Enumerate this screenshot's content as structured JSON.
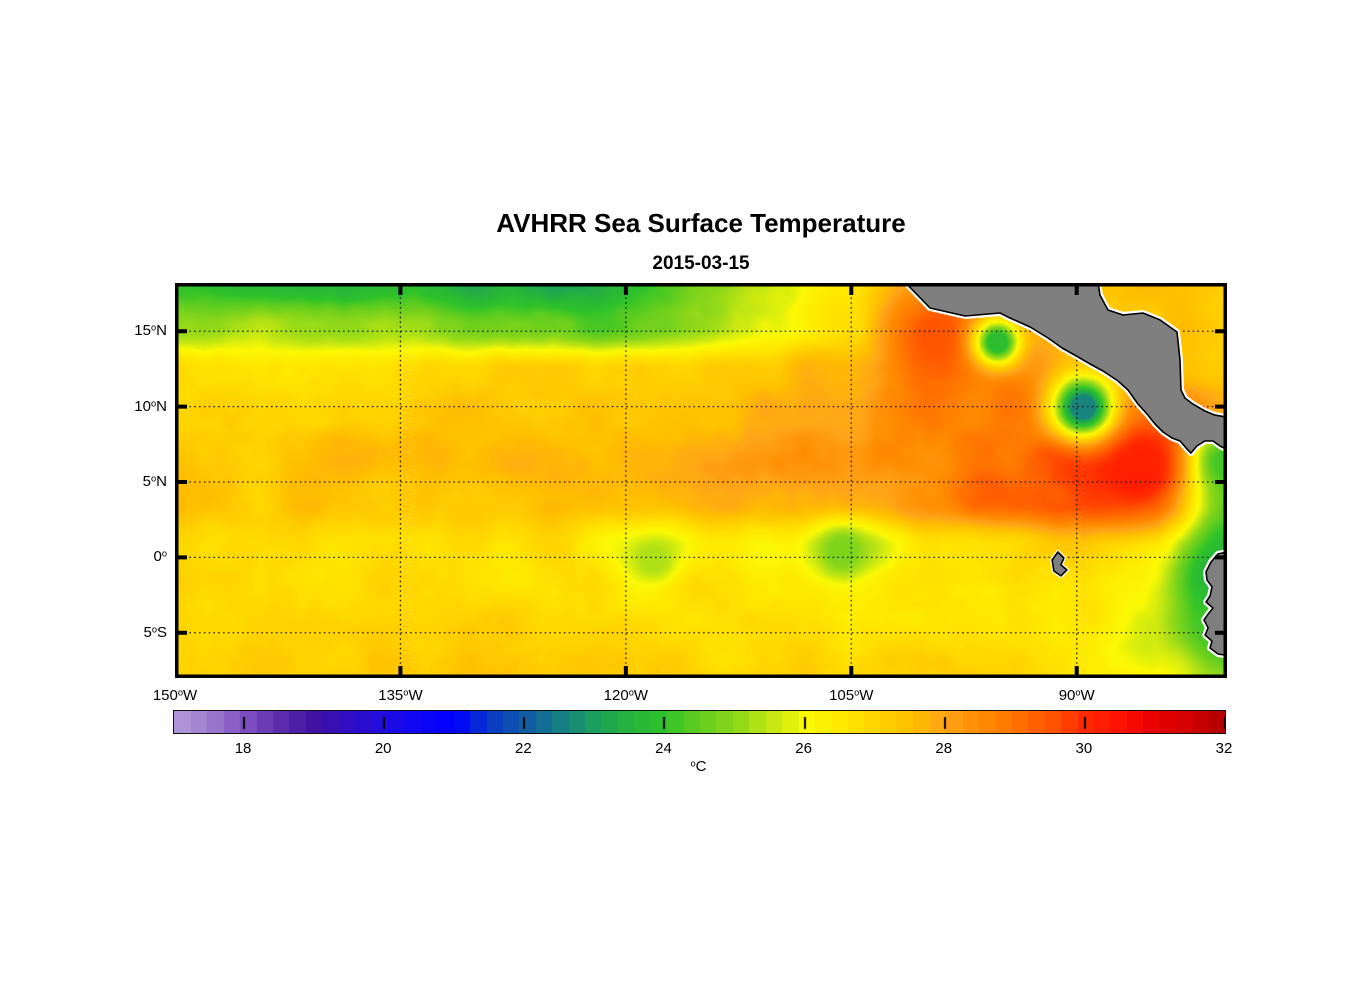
{
  "title": "AVHRR Sea Surface Temperature",
  "subtitle": "2015-03-15",
  "chart_data": {
    "type": "heatmap",
    "title": "AVHRR Sea Surface Temperature",
    "subtitle": "2015-03-15",
    "geo": {
      "lon_min": -150,
      "lon_max": -80,
      "lat_min": -8.0,
      "lat_max": 18.2
    },
    "x_ticks": [
      {
        "v": -150,
        "num": "150",
        "deg": "o",
        "dir": "W"
      },
      {
        "v": -135,
        "num": "135",
        "deg": "o",
        "dir": "W"
      },
      {
        "v": -120,
        "num": "120",
        "deg": "o",
        "dir": "W"
      },
      {
        "v": -105,
        "num": "105",
        "deg": "o",
        "dir": "W"
      },
      {
        "v": -90,
        "num": "90",
        "deg": "o",
        "dir": "W"
      }
    ],
    "y_ticks": [
      {
        "v": 15,
        "num": "15",
        "deg": "o",
        "dir": "N"
      },
      {
        "v": 10,
        "num": "10",
        "deg": "o",
        "dir": "N"
      },
      {
        "v": 5,
        "num": "5",
        "deg": "o",
        "dir": "N"
      },
      {
        "v": 0,
        "num": "0",
        "deg": "o",
        "dir": ""
      },
      {
        "v": -5,
        "num": "5",
        "deg": "o",
        "dir": "S"
      }
    ],
    "grid": {
      "lons": [
        -150,
        -145,
        -140,
        -135,
        -130,
        -125,
        -120,
        -115,
        -110,
        -105,
        -100,
        -95,
        -90,
        -85,
        -80
      ],
      "lats": [
        18.2,
        15.2889,
        12.3778,
        9.4667,
        6.5556,
        3.6444,
        0.7333,
        -2.1778,
        -5.0889,
        -8.0
      ],
      "sst": [
        [
          23.8,
          23.6,
          23.8,
          23.7,
          23.2,
          23.3,
          23.6,
          24.6,
          25.6,
          26.6,
          27.9,
          27.9,
          27.4,
          27.3,
          27.4
        ],
        [
          25.1,
          25.2,
          25.0,
          25.1,
          24.7,
          24.5,
          24.4,
          25.3,
          25.9,
          26.8,
          28.5,
          28.3,
          27.6,
          27.3,
          27.2
        ],
        [
          26.6,
          26.8,
          26.9,
          27.0,
          27.1,
          27.0,
          26.9,
          27.1,
          27.4,
          27.9,
          28.8,
          28.9,
          28.2,
          27.6,
          27.4
        ],
        [
          27.0,
          27.2,
          27.1,
          27.3,
          27.4,
          27.2,
          27.3,
          27.5,
          27.7,
          28.0,
          28.6,
          28.8,
          28.4,
          28.6,
          27.8
        ],
        [
          27.4,
          27.3,
          27.5,
          27.4,
          27.6,
          27.8,
          27.6,
          28.2,
          28.4,
          28.2,
          28.3,
          29.0,
          29.8,
          29.8,
          25.0
        ],
        [
          27.3,
          27.2,
          27.4,
          27.3,
          27.2,
          27.4,
          27.3,
          27.6,
          27.7,
          27.9,
          28.4,
          29.2,
          29.5,
          27.8,
          24.5
        ],
        [
          26.8,
          26.9,
          26.7,
          26.8,
          26.6,
          26.9,
          25.9,
          26.4,
          26.3,
          25.6,
          26.6,
          26.9,
          27.2,
          26.1,
          24.2
        ],
        [
          26.9,
          27.0,
          26.8,
          26.9,
          26.8,
          26.7,
          26.6,
          26.8,
          26.6,
          26.5,
          26.7,
          26.5,
          26.8,
          25.9,
          23.8
        ],
        [
          27.1,
          27.0,
          27.2,
          27.1,
          27.0,
          26.9,
          27.0,
          26.8,
          26.9,
          26.8,
          26.8,
          26.6,
          26.6,
          25.6,
          24.0
        ],
        [
          27.2,
          27.1,
          27.3,
          27.2,
          27.3,
          27.1,
          27.2,
          27.0,
          27.1,
          27.0,
          27.0,
          26.9,
          26.7,
          26.0,
          25.0
        ]
      ]
    },
    "anomalies": [
      {
        "name": "mexico-coastal-warm-band",
        "lon": -99.2,
        "lat": 14.7,
        "sigma": 2.0,
        "value": 29.5
      },
      {
        "name": "coastal-warm-pool",
        "lon": -86.0,
        "lat": 5.8,
        "sigma": 2.4,
        "value": 30.2
      },
      {
        "name": "tehuantepec-cool-eddy",
        "lon": -95.3,
        "lat": 14.3,
        "sigma": 1.1,
        "value": 23.8
      },
      {
        "name": "papagayo-cool-eddy",
        "lon": -89.6,
        "lat": 10.0,
        "sigma": 1.4,
        "value": 22.6
      },
      {
        "name": "equatorial-cool-west",
        "lon": -118.2,
        "lat": -0.1,
        "sigma": 1.3,
        "value": 25.3
      },
      {
        "name": "equatorial-cool-east",
        "lon": -105.6,
        "lat": 0.4,
        "sigma": 1.4,
        "value": 24.8
      },
      {
        "name": "gulf-of-panama-cool",
        "lon": -80.0,
        "lat": 6.3,
        "sigma": 1.5,
        "value": 24.2
      },
      {
        "name": "ecuador-coastal-cool",
        "lon": -80.2,
        "lat": -1.2,
        "sigma": 1.9,
        "value": 23.5
      },
      {
        "name": "peru-coastal-cool",
        "lon": -80.4,
        "lat": -4.4,
        "sigma": 1.4,
        "value": 24.2
      }
    ],
    "colorbar": {
      "min": 17,
      "max": 32,
      "bands": 64,
      "ticks": [
        18,
        20,
        22,
        24,
        26,
        28,
        30,
        32
      ],
      "unit_deg": "o",
      "unit": "C",
      "stops": [
        [
          17.0,
          "#B49BDB"
        ],
        [
          17.5,
          "#9E7CCC"
        ],
        [
          18.0,
          "#7F52C1"
        ],
        [
          18.5,
          "#5C2EAE"
        ],
        [
          19.0,
          "#40129F"
        ],
        [
          19.5,
          "#300EC4"
        ],
        [
          20.0,
          "#210DE0"
        ],
        [
          20.5,
          "#0F06F5"
        ],
        [
          21.0,
          "#0000FF"
        ],
        [
          21.5,
          "#0A3BC8"
        ],
        [
          22.0,
          "#115AA6"
        ],
        [
          22.5,
          "#167D87"
        ],
        [
          23.0,
          "#1CA05E"
        ],
        [
          23.5,
          "#28B43C"
        ],
        [
          24.0,
          "#2FC32B"
        ],
        [
          24.5,
          "#63CE1F"
        ],
        [
          25.0,
          "#8ED81A"
        ],
        [
          25.5,
          "#C3E714"
        ],
        [
          26.0,
          "#FCFA05"
        ],
        [
          26.5,
          "#FFE900"
        ],
        [
          27.0,
          "#FFD500"
        ],
        [
          27.5,
          "#FFC000"
        ],
        [
          28.0,
          "#FFA519"
        ],
        [
          28.5,
          "#FF8C00"
        ],
        [
          29.0,
          "#FF7400"
        ],
        [
          29.5,
          "#FF5500"
        ],
        [
          30.0,
          "#FF2A00"
        ],
        [
          30.5,
          "#FF1100"
        ],
        [
          31.0,
          "#E80000"
        ],
        [
          31.5,
          "#D10000"
        ],
        [
          32.0,
          "#B00000"
        ]
      ]
    },
    "land": {
      "fill": "#7F7F7F",
      "outline": "#000000",
      "fringe": "#FFFFFF",
      "polygons": {
        "central_america": [
          [
            -101.76,
            18.6
          ],
          [
            -99.76,
            16.54
          ],
          [
            -97.43,
            16.01
          ],
          [
            -95.1,
            16.21
          ],
          [
            -94.57,
            15.94
          ],
          [
            -93.1,
            15.28
          ],
          [
            -91.91,
            14.55
          ],
          [
            -90.97,
            13.89
          ],
          [
            -89.91,
            13.29
          ],
          [
            -89.11,
            12.83
          ],
          [
            -88.25,
            12.36
          ],
          [
            -87.25,
            11.7
          ],
          [
            -86.59,
            11.1
          ],
          [
            -85.92,
            10.17
          ],
          [
            -85.32,
            9.51
          ],
          [
            -84.79,
            8.85
          ],
          [
            -84.26,
            8.32
          ],
          [
            -83.66,
            7.92
          ],
          [
            -83.13,
            7.72
          ],
          [
            -82.73,
            7.26
          ],
          [
            -82.4,
            6.92
          ],
          [
            -82.0,
            7.39
          ],
          [
            -81.47,
            7.72
          ],
          [
            -80.93,
            7.72
          ],
          [
            -80.47,
            7.39
          ],
          [
            -79.3,
            6.79
          ],
          [
            -79.3,
            9.18
          ],
          [
            -80.8,
            9.44
          ],
          [
            -81.47,
            9.71
          ],
          [
            -82.26,
            10.17
          ],
          [
            -82.8,
            10.57
          ],
          [
            -83.06,
            11.1
          ],
          [
            -83.13,
            13.09
          ],
          [
            -83.33,
            14.95
          ],
          [
            -84.46,
            15.75
          ],
          [
            -85.59,
            16.21
          ],
          [
            -86.92,
            16.08
          ],
          [
            -87.92,
            16.41
          ],
          [
            -88.45,
            17.4
          ],
          [
            -88.65,
            18.6
          ]
        ],
        "south_america": [
          [
            -79.3,
            0.49
          ],
          [
            -80.6,
            0.23
          ],
          [
            -81.07,
            -0.31
          ],
          [
            -81.4,
            -0.97
          ],
          [
            -81.33,
            -1.5
          ],
          [
            -81.0,
            -1.96
          ],
          [
            -81.13,
            -2.56
          ],
          [
            -81.4,
            -2.96
          ],
          [
            -80.93,
            -3.36
          ],
          [
            -81.26,
            -3.76
          ],
          [
            -81.53,
            -4.15
          ],
          [
            -81.26,
            -4.68
          ],
          [
            -81.46,
            -5.15
          ],
          [
            -81.0,
            -5.55
          ],
          [
            -81.13,
            -6.01
          ],
          [
            -80.6,
            -6.41
          ],
          [
            -79.3,
            -6.61
          ]
        ],
        "galapagos": [
          [
            -91.64,
            -0.17
          ],
          [
            -91.25,
            0.36
          ],
          [
            -90.85,
            -0.04
          ],
          [
            -91.05,
            -0.5
          ],
          [
            -90.65,
            -0.83
          ],
          [
            -91.05,
            -1.23
          ],
          [
            -91.52,
            -0.9
          ]
        ]
      }
    },
    "style": {
      "grid_on": true,
      "gridline_lats": [
        15,
        10,
        5,
        0,
        -5
      ],
      "gridline_lons": [
        -135,
        -120,
        -105,
        -90
      ],
      "border_color": "#000000"
    }
  }
}
